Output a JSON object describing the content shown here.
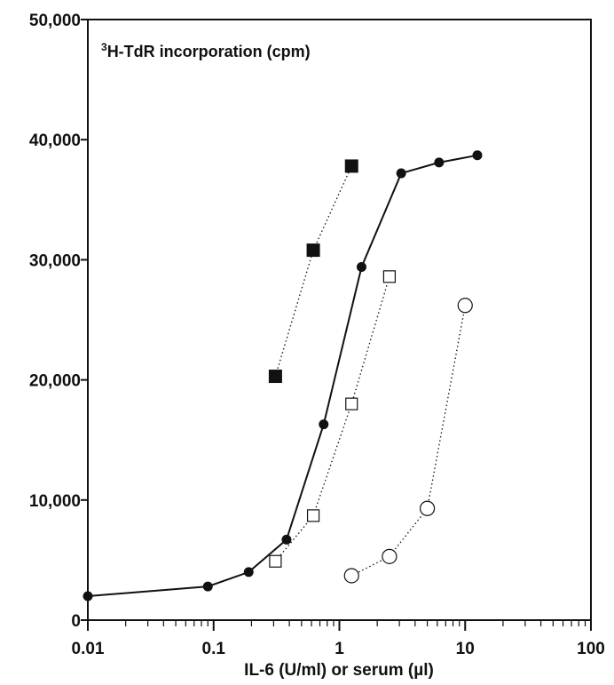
{
  "chart_data": {
    "type": "scatter",
    "title_prefix": "3",
    "title_main": "H-TdR incorporation (cpm)",
    "xlabel": "IL-6 (U/ml) or serum (µl)",
    "ylabel": "",
    "x_scale": "log",
    "xlim": [
      0.01,
      100
    ],
    "ylim": [
      0,
      50000
    ],
    "x_ticks": [
      0.01,
      0.1,
      1,
      10,
      100
    ],
    "x_tick_labels": [
      "0.01",
      "0.1",
      "1",
      "10",
      "100"
    ],
    "y_ticks": [
      0,
      10000,
      20000,
      30000,
      40000,
      50000
    ],
    "y_tick_labels": [
      "0",
      "10,000",
      "20,000",
      "30,000",
      "40,000",
      "50,000"
    ],
    "grid": false,
    "series": [
      {
        "marker": "filled-circle",
        "line": "solid",
        "color": "#111111",
        "points": [
          {
            "x": 0.01,
            "y": 2000
          },
          {
            "x": 0.09,
            "y": 2800
          },
          {
            "x": 0.19,
            "y": 4000
          },
          {
            "x": 0.38,
            "y": 6700
          },
          {
            "x": 0.75,
            "y": 16300
          },
          {
            "x": 1.5,
            "y": 29400
          },
          {
            "x": 3.1,
            "y": 37200
          },
          {
            "x": 6.2,
            "y": 38100
          },
          {
            "x": 12.5,
            "y": 38700
          }
        ]
      },
      {
        "marker": "filled-square",
        "line": "dotted",
        "color": "#111111",
        "points": [
          {
            "x": 0.31,
            "y": 20300
          },
          {
            "x": 0.62,
            "y": 30800
          },
          {
            "x": 1.25,
            "y": 37800
          }
        ]
      },
      {
        "marker": "open-square",
        "line": "dotted",
        "color": "#111111",
        "points": [
          {
            "x": 0.31,
            "y": 4900
          },
          {
            "x": 0.62,
            "y": 8700
          },
          {
            "x": 1.25,
            "y": 18000
          },
          {
            "x": 2.5,
            "y": 28600
          }
        ]
      },
      {
        "marker": "open-circle",
        "line": "dotted",
        "color": "#111111",
        "points": [
          {
            "x": 1.25,
            "y": 3700
          },
          {
            "x": 2.5,
            "y": 5300
          },
          {
            "x": 5.0,
            "y": 9300
          },
          {
            "x": 10.0,
            "y": 26200
          }
        ]
      }
    ]
  }
}
